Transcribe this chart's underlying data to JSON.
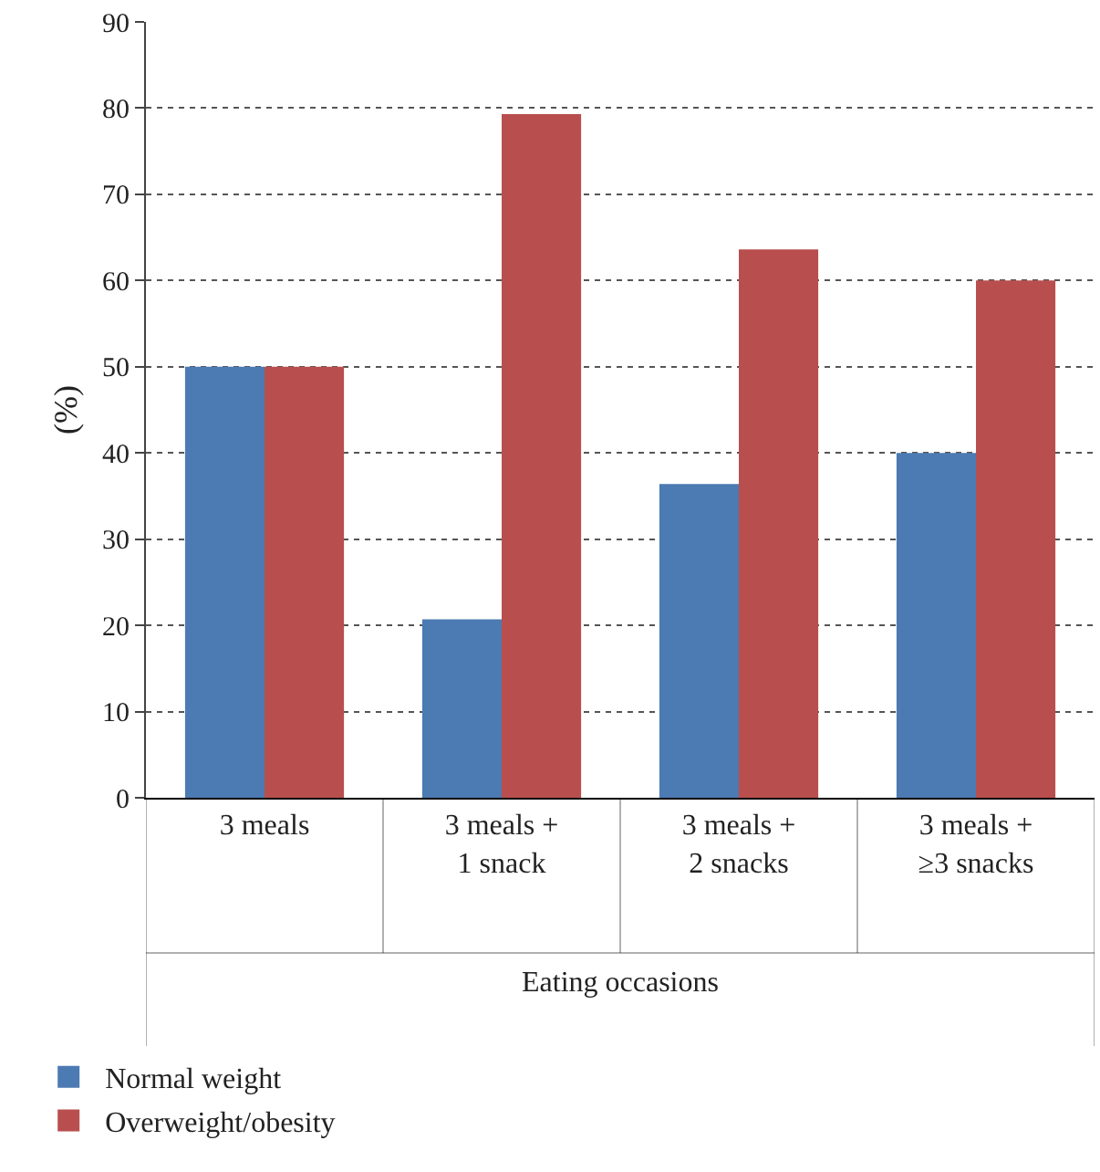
{
  "chart_data": {
    "type": "bar",
    "xlabel": "Eating occasions",
    "ylabel": "(%)",
    "categories": [
      "3 meals",
      "3 meals +\n1 snack",
      "3 meals +\n2 snacks",
      "3 meals +\n≥3 snacks"
    ],
    "series": [
      {
        "name": "Normal weight",
        "color": "#4c7ab2",
        "values": [
          50,
          20.7,
          36.4,
          40
        ]
      },
      {
        "name": "Overweight/obesity",
        "color": "#b84f4e",
        "values": [
          50,
          79.3,
          63.6,
          60
        ]
      }
    ],
    "ylim": [
      0,
      90
    ],
    "yticks": [
      0,
      10,
      20,
      30,
      40,
      50,
      60,
      70,
      80,
      90
    ],
    "grid": "y",
    "legend": "bottom left"
  }
}
